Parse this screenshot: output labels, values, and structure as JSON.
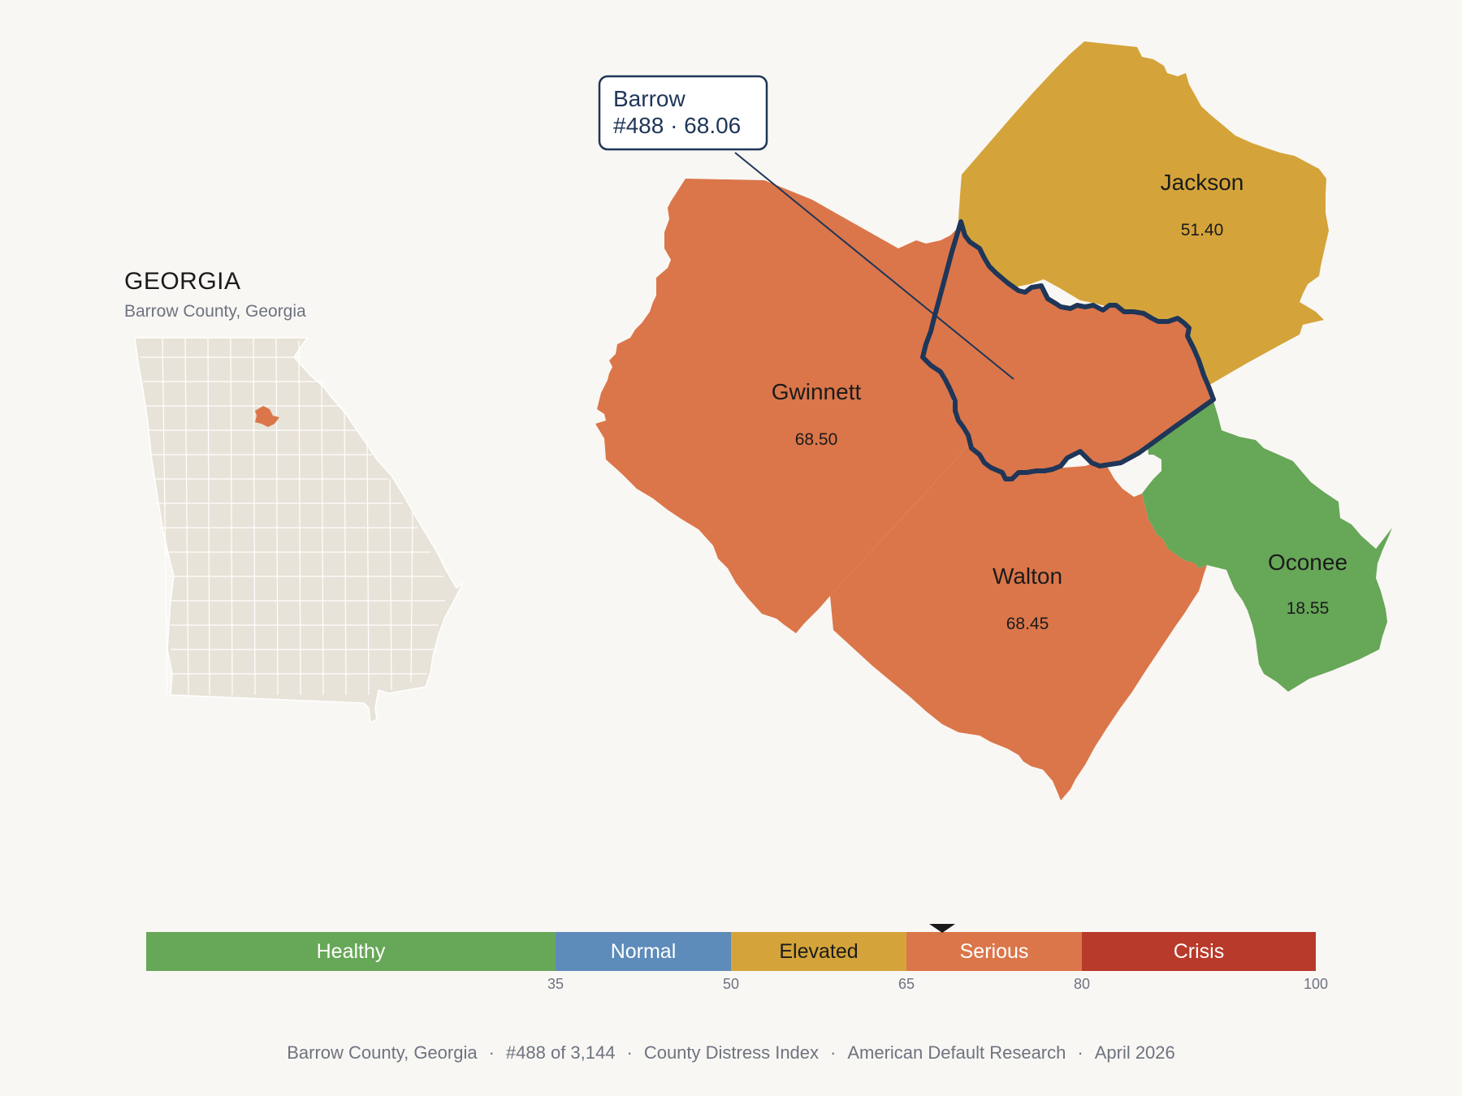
{
  "inset": {
    "state_name": "GEORGIA",
    "subtitle": "Barrow County, Georgia"
  },
  "callout": {
    "county": "Barrow",
    "detail": "#488 · 68.06"
  },
  "counties": [
    {
      "name": "Jackson",
      "value": "51.40",
      "category": "Elevated",
      "color": "#d4a43a"
    },
    {
      "name": "Gwinnett",
      "value": "68.50",
      "category": "Serious",
      "color": "#db764a"
    },
    {
      "name": "Walton",
      "value": "68.45",
      "category": "Serious",
      "color": "#db764a"
    },
    {
      "name": "Oconee",
      "value": "18.55",
      "category": "Healthy",
      "color": "#67a758"
    },
    {
      "name": "Barrow",
      "value": "68.06",
      "category": "Serious",
      "color": "#db764a",
      "highlighted": true
    }
  ],
  "legend": {
    "bands": [
      {
        "label": "Healthy",
        "from": 0,
        "to": 35,
        "color": "#67a758"
      },
      {
        "label": "Normal",
        "from": 35,
        "to": 50,
        "color": "#5d8bba"
      },
      {
        "label": "Elevated",
        "from": 50,
        "to": 65,
        "color": "#d4a43a"
      },
      {
        "label": "Serious",
        "from": 65,
        "to": 80,
        "color": "#db764a"
      },
      {
        "label": "Crisis",
        "from": 80,
        "to": 100,
        "color": "#b83a2a"
      }
    ],
    "ticks": [
      "35",
      "50",
      "65",
      "80",
      "100"
    ],
    "marker_value": 68.06
  },
  "footer": {
    "parts": [
      "Barrow County, Georgia",
      "#488 of 3,144",
      "County Distress Index",
      "American Default Research",
      "April 2026"
    ]
  },
  "colors": {
    "background": "#f9f7f4",
    "highlight_outline": "#1f3658",
    "inset_fill": "#e8e3d8"
  }
}
